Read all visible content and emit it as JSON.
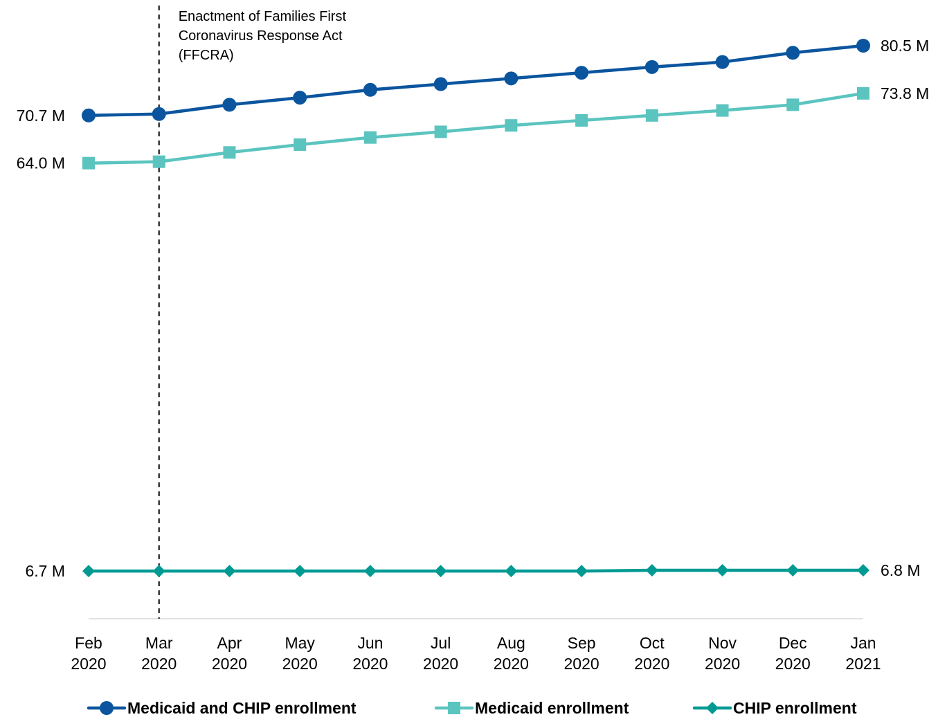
{
  "chart_data": {
    "type": "line",
    "title": "",
    "xlabel": "",
    "ylabel": "",
    "categories": [
      [
        "Feb",
        "2020"
      ],
      [
        "Mar",
        "2020"
      ],
      [
        "Apr",
        "2020"
      ],
      [
        "May",
        "2020"
      ],
      [
        "Jun",
        "2020"
      ],
      [
        "Jul",
        "2020"
      ],
      [
        "Aug",
        "2020"
      ],
      [
        "Sep",
        "2020"
      ],
      [
        "Oct",
        "2020"
      ],
      [
        "Nov",
        "2020"
      ],
      [
        "Dec",
        "2020"
      ],
      [
        "Jan",
        "2021"
      ]
    ],
    "ylim": [
      0,
      84
    ],
    "y_axis_shown": false,
    "grid": false,
    "legend_position": "bottom",
    "series": [
      {
        "name": "Medicaid and CHIP enrollment",
        "color": "#0B559F",
        "marker": "circle",
        "values": [
          70.7,
          70.9,
          72.2,
          73.2,
          74.3,
          75.1,
          75.9,
          76.7,
          77.5,
          78.2,
          79.5,
          80.5
        ],
        "start_label": "70.7 M",
        "end_label": "80.5 M"
      },
      {
        "name": "Medicaid enrollment",
        "color": "#5BC4BF",
        "marker": "square",
        "values": [
          64.0,
          64.2,
          65.5,
          66.6,
          67.6,
          68.4,
          69.3,
          70.0,
          70.7,
          71.4,
          72.2,
          73.8
        ],
        "start_label": "64.0 M",
        "end_label": "73.8 M"
      },
      {
        "name": "CHIP enrollment",
        "color": "#009A93",
        "marker": "diamond",
        "values": [
          6.7,
          6.7,
          6.7,
          6.7,
          6.7,
          6.7,
          6.7,
          6.7,
          6.8,
          6.8,
          6.8,
          6.8
        ],
        "start_label": "6.7 M",
        "end_label": "6.8 M"
      }
    ],
    "annotations": [
      {
        "category_index": 1,
        "style": "dashed-vertical-line",
        "lines": [
          "Enactment of Families First",
          "Coronavirus Response Act",
          "(FFCRA)"
        ]
      }
    ]
  }
}
